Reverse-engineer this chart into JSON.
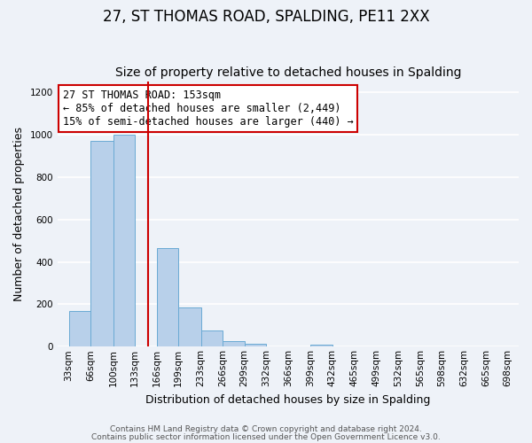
{
  "title": "27, ST THOMAS ROAD, SPALDING, PE11 2XX",
  "subtitle": "Size of property relative to detached houses in Spalding",
  "xlabel": "Distribution of detached houses by size in Spalding",
  "ylabel": "Number of detached properties",
  "bin_edges": [
    33,
    66,
    100,
    133,
    166,
    199,
    233,
    266,
    299,
    332,
    366,
    399,
    432,
    465,
    499,
    532,
    565,
    598,
    632,
    665,
    698
  ],
  "bar_heights": [
    170,
    970,
    1000,
    0,
    465,
    185,
    75,
    25,
    15,
    0,
    0,
    10,
    0,
    0,
    0,
    0,
    0,
    0,
    0,
    0
  ],
  "bar_color": "#b8d0ea",
  "bar_edge_color": "#6aaad4",
  "vline_x": 153,
  "vline_color": "#cc0000",
  "annotation_title": "27 ST THOMAS ROAD: 153sqm",
  "annotation_line1": "← 85% of detached houses are smaller (2,449)",
  "annotation_line2": "15% of semi-detached houses are larger (440) →",
  "annotation_box_facecolor": "#ffffff",
  "annotation_box_edgecolor": "#cc0000",
  "ylim": [
    0,
    1250
  ],
  "yticks": [
    0,
    200,
    400,
    600,
    800,
    1000,
    1200
  ],
  "footnote1": "Contains HM Land Registry data © Crown copyright and database right 2024.",
  "footnote2": "Contains public sector information licensed under the Open Government Licence v3.0.",
  "bg_color": "#eef2f8",
  "grid_color": "#ffffff",
  "title_fontsize": 12,
  "subtitle_fontsize": 10,
  "axis_label_fontsize": 9,
  "tick_fontsize": 7.5,
  "annotation_fontsize": 8.5,
  "footnote_fontsize": 6.5
}
